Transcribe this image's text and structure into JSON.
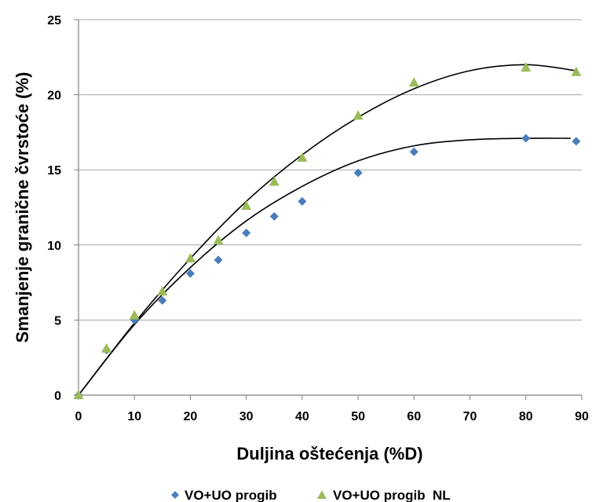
{
  "chart_data": {
    "type": "scatter",
    "xlabel": "Duljina oštećenja (%D)",
    "ylabel": "Smanjenje granične čvrstoće (%)",
    "xlim": [
      0,
      90
    ],
    "ylim": [
      0,
      25
    ],
    "xticks": [
      "0",
      "10",
      "20",
      "30",
      "40",
      "50",
      "60",
      "70",
      "80",
      "90"
    ],
    "yticks": [
      "0",
      "5",
      "10",
      "15",
      "20",
      "25"
    ],
    "grid": "horizontal",
    "legend_position": "bottom",
    "series": [
      {
        "name": "VO+UO progib",
        "marker": "diamond",
        "color": "#4a7ebb",
        "x": [
          0,
          5,
          10,
          15,
          20,
          25,
          30,
          35,
          40,
          50,
          60,
          80,
          89
        ],
        "y": [
          0,
          3.0,
          5.0,
          6.3,
          8.1,
          9.0,
          10.8,
          11.9,
          12.9,
          14.8,
          16.2,
          17.1,
          16.9
        ],
        "trendline": "polynomial",
        "trend_points": [
          [
            0,
            0
          ],
          [
            10,
            4.7
          ],
          [
            20,
            8.5
          ],
          [
            30,
            11.6
          ],
          [
            40,
            13.9
          ],
          [
            50,
            15.6
          ],
          [
            60,
            16.6
          ],
          [
            70,
            17.0
          ],
          [
            80,
            17.1
          ],
          [
            88,
            17.1
          ]
        ]
      },
      {
        "name": "VO+UO progib  NL",
        "marker": "triangle",
        "color": "#9bbb59",
        "x": [
          0,
          5,
          10,
          15,
          20,
          25,
          30,
          35,
          40,
          50,
          60,
          80,
          89
        ],
        "y": [
          0,
          3.1,
          5.3,
          6.9,
          9.1,
          10.3,
          12.6,
          14.2,
          15.8,
          18.6,
          20.8,
          21.8,
          21.5
        ],
        "trendline": "polynomial",
        "trend_points": [
          [
            0,
            0
          ],
          [
            10,
            4.8
          ],
          [
            20,
            9.1
          ],
          [
            30,
            12.9
          ],
          [
            40,
            16.0
          ],
          [
            50,
            18.5
          ],
          [
            60,
            20.4
          ],
          [
            70,
            21.6
          ],
          [
            80,
            22.0
          ],
          [
            89,
            21.6
          ]
        ]
      }
    ]
  }
}
